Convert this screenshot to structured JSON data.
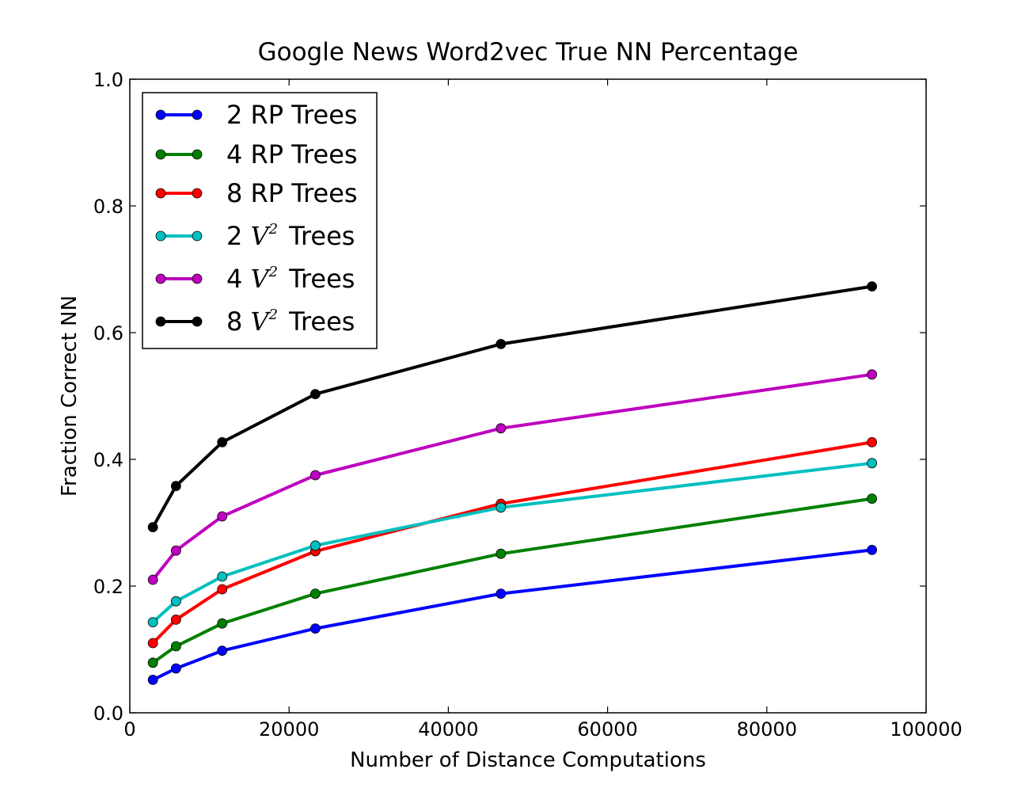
{
  "chart_data": {
    "type": "line",
    "title": "Google News Word2vec True NN Percentage",
    "xlabel": "Number of Distance Computations",
    "ylabel": "Fraction Correct NN",
    "xlim": [
      0,
      100000
    ],
    "ylim": [
      0.0,
      1.0
    ],
    "x_ticks": [
      0,
      20000,
      40000,
      60000,
      80000,
      100000
    ],
    "x_tick_labels": [
      "0",
      "20000",
      "40000",
      "60000",
      "80000",
      "100000"
    ],
    "y_ticks": [
      0.0,
      0.2,
      0.4,
      0.6,
      0.8,
      1.0
    ],
    "y_tick_labels": [
      "0.0",
      "0.2",
      "0.4",
      "0.6",
      "0.8",
      "1.0"
    ],
    "grid": false,
    "legend_position": "top-left",
    "x": [
      2900,
      5800,
      11600,
      23300,
      46600,
      93200
    ],
    "series": [
      {
        "name": "2 RP Trees",
        "legend_prefix": "2",
        "legend_math": "",
        "legend_suffix": "RP Trees",
        "color": "#0000ff",
        "values": [
          0.052,
          0.07,
          0.098,
          0.133,
          0.188,
          0.257
        ]
      },
      {
        "name": "4 RP Trees",
        "legend_prefix": "4",
        "legend_math": "",
        "legend_suffix": "RP Trees",
        "color": "#008000",
        "values": [
          0.079,
          0.105,
          0.141,
          0.188,
          0.251,
          0.338
        ]
      },
      {
        "name": "8 RP Trees",
        "legend_prefix": "8",
        "legend_math": "",
        "legend_suffix": "RP Trees",
        "color": "#ff0000",
        "values": [
          0.11,
          0.147,
          0.195,
          0.255,
          0.33,
          0.427
        ]
      },
      {
        "name": "2 V2 Trees",
        "legend_prefix": "2",
        "legend_math": "V",
        "legend_sup": "2",
        "legend_suffix": "Trees",
        "color": "#00bfbf",
        "values": [
          0.143,
          0.176,
          0.215,
          0.264,
          0.324,
          0.394
        ]
      },
      {
        "name": "4 V2 Trees",
        "legend_prefix": "4",
        "legend_math": "V",
        "legend_sup": "2",
        "legend_suffix": "Trees",
        "color": "#bf00bf",
        "values": [
          0.21,
          0.256,
          0.31,
          0.375,
          0.449,
          0.534
        ]
      },
      {
        "name": "8 V2 Trees",
        "legend_prefix": "8",
        "legend_math": "V",
        "legend_sup": "2",
        "legend_suffix": "Trees",
        "color": "#000000",
        "values": [
          0.293,
          0.358,
          0.427,
          0.503,
          0.582,
          0.673
        ]
      }
    ]
  }
}
